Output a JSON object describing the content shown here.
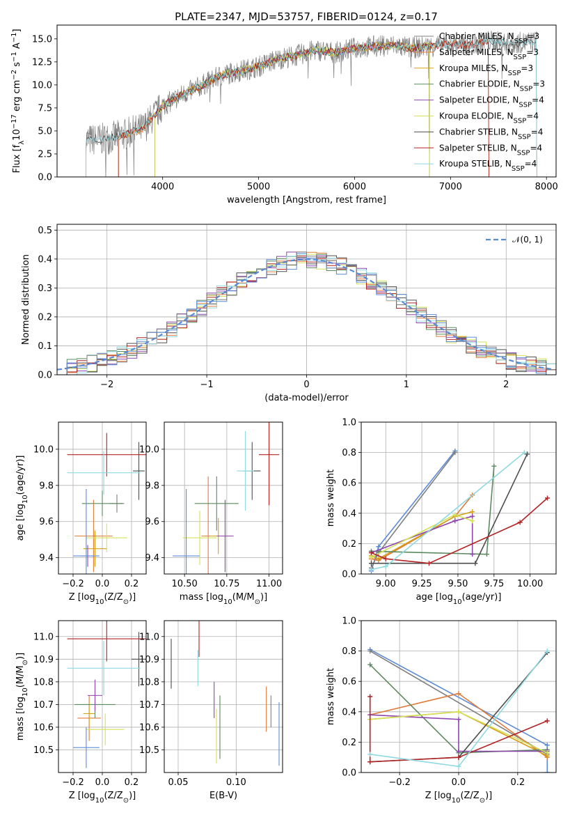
{
  "title": "PLATE=2347, MJD=53757, FIBERID=0124, z=0.17",
  "colors": {
    "chabrier_miles": "#7f7f7f",
    "salpeter_miles": "#e07b39",
    "kroupa_miles": "#d4a017",
    "chabrier_elodie": "#5b8a5f",
    "salpeter_elodie": "#8e44ad",
    "kroupa_elodie": "#d4e157",
    "chabrier_stelib": "#4d4d4d",
    "salpeter_stelib": "#b22222",
    "kroupa_stelib": "#8fd9e0",
    "gaussian": "#5b8bd6",
    "grid": "#b0b0b0"
  },
  "chart_data": [
    {
      "id": "spectrum",
      "type": "line",
      "title": "PLATE=2347, MJD=53757, FIBERID=0124, z=0.17",
      "xlabel": "wavelength [Angstrom, rest frame]",
      "ylabel": "Flux [f_λ 10^-17 erg cm^-2 s^-1 A^-1]",
      "xlim": [
        2900,
        8100
      ],
      "ylim": [
        0,
        16.5
      ],
      "xticks": [
        "4000",
        "5000",
        "6000",
        "7000",
        "8000"
      ],
      "yticks": [
        "0.0",
        "2.5",
        "5.0",
        "7.5",
        "10.0",
        "12.5",
        "15.0"
      ],
      "legend": [
        "Chabrier MILES, N_SSP=3",
        "Salpeter MILES, N_SSP=3",
        "Kroupa MILES, N_SSP=3",
        "Chabrier ELODIE, N_SSP=3",
        "Salpeter ELODIE, N_SSP=4",
        "Kroupa ELODIE, N_SSP=4",
        "Chabrier STELIB, N_SSP=4",
        "Salpeter STELIB, N_SSP=4",
        "Kroupa STELIB, N_SSP=4"
      ],
      "legend_position": "top-right",
      "x": [
        3200,
        3400,
        3600,
        3800,
        4000,
        4200,
        4400,
        4600,
        4800,
        5000,
        5200,
        5400,
        5600,
        5800,
        6000,
        6200,
        6400,
        6600,
        6800,
        7000,
        7200,
        7400,
        7600,
        7900
      ],
      "y": [
        4.0,
        4.1,
        4.6,
        5.3,
        7.7,
        8.9,
        9.9,
        11.0,
        11.5,
        12.0,
        12.8,
        13.2,
        13.8,
        13.5,
        14.0,
        14.2,
        14.3,
        14.0,
        14.2,
        14.5,
        14.3,
        14.8,
        14.5,
        14.7
      ],
      "model_range": [
        3200,
        7900
      ]
    },
    {
      "id": "residuals",
      "type": "line",
      "xlabel": "(data-model)/error",
      "ylabel": "Normed distribution",
      "xlim": [
        -2.5,
        2.5
      ],
      "ylim": [
        0,
        0.52
      ],
      "xticks": [
        "−2",
        "−1",
        "0",
        "1",
        "2"
      ],
      "yticks": [
        "0.0",
        "0.1",
        "0.2",
        "0.3",
        "0.4",
        "0.5"
      ],
      "legend": [
        "𝒩(0, 1)"
      ],
      "legend_position": "top-right",
      "bin_width": 0.1
    },
    {
      "id": "age_vs_Z",
      "type": "scatter",
      "xlabel": "Z [log10(Z/Z⊙)]",
      "ylabel": "age  [log10(age/yr)]",
      "xlim": [
        -0.3,
        0.3
      ],
      "ylim": [
        9.31,
        10.15
      ],
      "xticks": [
        "−0.2",
        "0.0",
        "0.2"
      ],
      "yticks": [
        "9.4",
        "9.6",
        "9.8",
        "10.0"
      ],
      "points": [
        {
          "c": "chabrier_miles",
          "x": 0.1,
          "xe": 0.05,
          "y": 9.7,
          "ye": 0.05
        },
        {
          "c": "salpeter_miles",
          "x": -0.06,
          "xe": 0.13,
          "y": 9.52,
          "ye": 0.2
        },
        {
          "c": "kroupa_miles",
          "x": -0.05,
          "xe": 0.08,
          "y": 9.45,
          "ye": 0.1
        },
        {
          "c": "chabrier_elodie",
          "x": 0.0,
          "xe": 0.14,
          "y": 9.7,
          "ye": 0.07
        },
        {
          "c": "salpeter_elodie",
          "x": -0.1,
          "xe": 0.05,
          "y": 9.41,
          "ye": 0.06
        },
        {
          "c": "kroupa_elodie",
          "x": 0.03,
          "xe": 0.14,
          "y": 9.51,
          "ye": 0.08
        },
        {
          "c": "chabrier_stelib",
          "x": 0.25,
          "xe": 0.04,
          "y": 9.88,
          "ye": 0.16
        },
        {
          "c": "salpeter_stelib",
          "x": 0.03,
          "xe": 0.27,
          "y": 9.97,
          "ye": 0.12
        },
        {
          "c": "kroupa_stelib",
          "x": 0.01,
          "xe": 0.25,
          "y": 9.87,
          "ye": 0.12
        },
        {
          "c": "gaussian",
          "x": -0.11,
          "xe": 0.09,
          "y": 9.41,
          "ye": 0.37
        }
      ]
    },
    {
      "id": "age_vs_mass",
      "type": "scatter",
      "xlabel": "mass [log10(M/M⊙)]",
      "xlim": [
        10.38,
        11.08
      ],
      "ylim": [
        9.31,
        10.15
      ],
      "xticks": [
        "10.50",
        "10.75",
        "11.00"
      ],
      "yticks": [
        "9.4",
        "9.6",
        "9.8",
        "10.0"
      ],
      "points": [
        {
          "c": "salpeter_miles",
          "x": 10.64,
          "xe": 0.04,
          "y": 9.52,
          "ye": 0.33
        },
        {
          "c": "kroupa_miles",
          "x": 10.7,
          "xe": 0.05,
          "y": 9.52,
          "ye": 0.1
        },
        {
          "c": "chabrier_elodie",
          "x": 10.69,
          "xe": 0.13,
          "y": 9.7,
          "ye": 0.15
        },
        {
          "c": "salpeter_elodie",
          "x": 10.74,
          "xe": 0.05,
          "y": 9.52,
          "ye": 0.2
        },
        {
          "c": "kroupa_elodie",
          "x": 10.59,
          "xe": 0.1,
          "y": 9.51,
          "ye": 0.15
        },
        {
          "c": "chabrier_stelib",
          "x": 10.9,
          "xe": 0.05,
          "y": 9.88,
          "ye": 0.16
        },
        {
          "c": "salpeter_stelib",
          "x": 11.0,
          "xe": 0.06,
          "y": 9.97,
          "ye": 0.28
        },
        {
          "c": "kroupa_stelib",
          "x": 10.86,
          "xe": 0.05,
          "y": 9.88,
          "ye": 0.22
        },
        {
          "c": "gaussian",
          "x": 10.51,
          "xe": 0.08,
          "y": 9.41,
          "ye": 0.37
        }
      ]
    },
    {
      "id": "weight_vs_age",
      "type": "line",
      "xlabel": "age  [log10(age/yr)]",
      "ylabel": "mass weight",
      "xlim": [
        8.83,
        10.18
      ],
      "ylim": [
        0,
        1
      ],
      "xticks": [
        "9.00",
        "9.25",
        "9.50",
        "9.75",
        "10.00"
      ],
      "yticks": [
        "0.0",
        "0.2",
        "0.4",
        "0.6",
        "0.8",
        "1.0"
      ],
      "series": [
        {
          "c": "gaussian",
          "x": [
            8.9,
            8.95,
            9.48
          ],
          "y": [
            0.02,
            0.18,
            0.81
          ]
        },
        {
          "c": "chabrier_miles",
          "x": [
            8.9,
            8.95,
            9.48
          ],
          "y": [
            0.04,
            0.14,
            0.8
          ]
        },
        {
          "c": "salpeter_miles",
          "x": [
            8.9,
            8.95,
            9.48,
            9.6
          ],
          "y": [
            0.1,
            0.09,
            0.38,
            0.52
          ]
        },
        {
          "c": "kroupa_miles",
          "x": [
            8.9,
            8.95,
            9.48,
            9.6
          ],
          "y": [
            0.12,
            0.1,
            0.38,
            0.41
          ]
        },
        {
          "c": "chabrier_elodie",
          "x": [
            8.9,
            9.7,
            9.75
          ],
          "y": [
            0.15,
            0.13,
            0.71
          ]
        },
        {
          "c": "salpeter_elodie",
          "x": [
            8.9,
            9.48,
            9.6,
            9.6
          ],
          "y": [
            0.14,
            0.35,
            0.38,
            0.13
          ]
        },
        {
          "c": "kroupa_elodie",
          "x": [
            8.9,
            9.48,
            9.6
          ],
          "y": [
            0.11,
            0.39,
            0.35
          ]
        },
        {
          "c": "chabrier_stelib",
          "x": [
            8.9,
            9.62,
            9.98
          ],
          "y": [
            0.07,
            0.07,
            0.79
          ]
        },
        {
          "c": "salpeter_stelib",
          "x": [
            8.9,
            9.0,
            9.3,
            9.93,
            10.12
          ],
          "y": [
            0.14,
            0.1,
            0.07,
            0.34,
            0.5
          ]
        },
        {
          "c": "kroupa_stelib",
          "x": [
            8.9,
            9.0,
            9.96
          ],
          "y": [
            0.03,
            0.05,
            0.8
          ]
        }
      ]
    },
    {
      "id": "mass_vs_Z",
      "type": "scatter",
      "xlabel": "Z [log10(Z/Z⊙)]",
      "ylabel": "mass [log10(M/M⊙)]",
      "xlim": [
        -0.3,
        0.3
      ],
      "ylim": [
        10.4,
        11.07
      ],
      "xticks": [
        "−0.2",
        "0.0",
        "0.2"
      ],
      "yticks": [
        "10.5",
        "10.6",
        "10.7",
        "10.8",
        "10.9",
        "11.0"
      ],
      "points": [
        {
          "c": "salpeter_miles",
          "x": -0.09,
          "xe": 0.08,
          "y": 10.64,
          "ye": 0.1
        },
        {
          "c": "kroupa_miles",
          "x": -0.09,
          "xe": 0.04,
          "y": 10.66,
          "ye": 0.05
        },
        {
          "c": "chabrier_elodie",
          "x": -0.05,
          "xe": 0.14,
          "y": 10.7,
          "ye": 0.06
        },
        {
          "c": "salpeter_elodie",
          "x": -0.05,
          "xe": 0.05,
          "y": 10.74,
          "ye": 0.07
        },
        {
          "c": "kroupa_elodie",
          "x": 0.02,
          "xe": 0.13,
          "y": 10.59,
          "ye": 0.07
        },
        {
          "c": "chabrier_stelib",
          "x": 0.25,
          "xe": 0.05,
          "y": 10.9,
          "ye": 0.12
        },
        {
          "c": "salpeter_stelib",
          "x": 0.03,
          "xe": 0.27,
          "y": 10.99,
          "ye": 0.1
        },
        {
          "c": "kroupa_stelib",
          "x": 0.01,
          "xe": 0.25,
          "y": 10.86,
          "ye": 0.12
        },
        {
          "c": "gaussian",
          "x": -0.11,
          "xe": 0.09,
          "y": 10.51,
          "ye": 0.09
        }
      ]
    },
    {
      "id": "mass_vs_ebv",
      "type": "scatter",
      "xlabel": "E(B-V)",
      "xlim": [
        0.038,
        0.14
      ],
      "ylim": [
        10.4,
        11.07
      ],
      "xticks": [
        "0.05",
        "0.10"
      ],
      "yticks": [
        "10.5",
        "10.6",
        "10.7",
        "10.8",
        "10.9",
        "11.0"
      ],
      "points": [
        {
          "c": "chabrier_stelib",
          "x": 0.044,
          "y": 10.88,
          "ye": 0.11
        },
        {
          "c": "salpeter_stelib",
          "x": 0.068,
          "y": 10.99,
          "ye": 0.08
        },
        {
          "c": "kroupa_stelib",
          "x": 0.067,
          "y": 10.86,
          "ye": 0.08
        },
        {
          "c": "salpeter_elodie",
          "x": 0.081,
          "y": 10.72,
          "ye": 0.08
        },
        {
          "c": "kroupa_elodie",
          "x": 0.083,
          "y": 10.56,
          "ye": 0.12
        },
        {
          "c": "chabrier_elodie",
          "x": 0.086,
          "y": 10.6,
          "ye": 0.14
        },
        {
          "c": "salpeter_miles",
          "x": 0.126,
          "y": 10.68,
          "ye": 0.1
        },
        {
          "c": "chabrier_miles",
          "x": 0.13,
          "y": 10.67,
          "ye": 0.07
        },
        {
          "c": "gaussian",
          "x": 0.137,
          "y": 10.57,
          "ye": 0.14
        }
      ]
    },
    {
      "id": "weight_vs_Z",
      "type": "line",
      "xlabel": "Z [log10(Z/Z⊙)]",
      "ylabel": "mass weight",
      "xlim": [
        -0.33,
        0.33
      ],
      "ylim": [
        0,
        1
      ],
      "xticks": [
        "−0.2",
        "0.0",
        "0.2"
      ],
      "yticks": [
        "0.0",
        "0.2",
        "0.4",
        "0.6",
        "0.8",
        "1.0"
      ],
      "series": [
        {
          "c": "gaussian",
          "x": [
            -0.3,
            0.3,
            0.3
          ],
          "y": [
            0.81,
            0.18,
            0.0
          ]
        },
        {
          "c": "chabrier_miles",
          "x": [
            -0.3,
            0.3
          ],
          "y": [
            0.8,
            0.12
          ]
        },
        {
          "c": "salpeter_miles",
          "x": [
            -0.3,
            0.0,
            0.3
          ],
          "y": [
            0.38,
            0.52,
            0.1
          ]
        },
        {
          "c": "kroupa_miles",
          "x": [
            -0.3,
            0.0,
            0.3
          ],
          "y": [
            0.35,
            0.4,
            0.11
          ]
        },
        {
          "c": "chabrier_elodie",
          "x": [
            -0.3,
            0.0,
            0.3
          ],
          "y": [
            0.71,
            0.13,
            0.15
          ]
        },
        {
          "c": "salpeter_elodie",
          "x": [
            -0.3,
            0.0,
            0.0,
            0.3
          ],
          "y": [
            0.38,
            0.35,
            0.14,
            0.14
          ]
        },
        {
          "c": "kroupa_elodie",
          "x": [
            -0.3,
            0.0,
            0.3
          ],
          "y": [
            0.35,
            0.4,
            0.13
          ]
        },
        {
          "c": "chabrier_stelib",
          "x": [
            -0.3,
            0.0,
            0.3
          ],
          "y": [
            0.07,
            0.1,
            0.79
          ]
        },
        {
          "c": "salpeter_stelib",
          "x": [
            -0.3,
            -0.3,
            0.0,
            0.3
          ],
          "y": [
            0.5,
            0.07,
            0.1,
            0.34
          ]
        },
        {
          "c": "kroupa_stelib",
          "x": [
            -0.3,
            0.0,
            0.3
          ],
          "y": [
            0.12,
            0.04,
            0.8
          ]
        }
      ]
    }
  ]
}
